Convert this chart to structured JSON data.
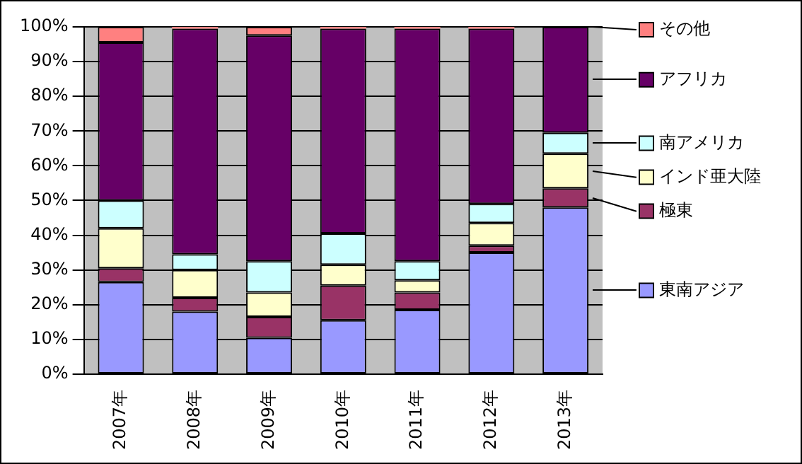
{
  "chart_data": {
    "type": "bar",
    "stacked": true,
    "grid": "y",
    "legend": "right",
    "categories": [
      "2007年",
      "2008年",
      "2009年",
      "2010年",
      "2011年",
      "2012年",
      "2013年"
    ],
    "ylim": [
      0,
      100
    ],
    "yticks": [
      {
        "value": 0,
        "label": "0%"
      },
      {
        "value": 10,
        "label": "10%"
      },
      {
        "value": 20,
        "label": "20%"
      },
      {
        "value": 30,
        "label": "30%"
      },
      {
        "value": 40,
        "label": "40%"
      },
      {
        "value": 50,
        "label": "50%"
      },
      {
        "value": 60,
        "label": "60%"
      },
      {
        "value": 70,
        "label": "70%"
      },
      {
        "value": 80,
        "label": "80%"
      },
      {
        "value": 90,
        "label": "90%"
      },
      {
        "value": 100,
        "label": "100%"
      }
    ],
    "series": [
      {
        "name": "東南アジア",
        "color": "#9999ff",
        "values": [
          26.5,
          18,
          10.5,
          15.5,
          18.5,
          35,
          48
        ]
      },
      {
        "name": "極東",
        "color": "#993366",
        "values": [
          4,
          4,
          6,
          10,
          5,
          2,
          5.5
        ]
      },
      {
        "name": "インド亜大陸",
        "color": "#ffffcc",
        "values": [
          11.5,
          8,
          7,
          6,
          3.5,
          6.5,
          10
        ]
      },
      {
        "name": "南アメリカ",
        "color": "#ccffff",
        "values": [
          8,
          4.5,
          9,
          9,
          5.5,
          5.5,
          6
        ]
      },
      {
        "name": "アフリカ",
        "color": "#660066",
        "values": [
          45.5,
          65,
          65,
          59,
          67,
          50.5,
          30.5
        ]
      },
      {
        "name": "その他",
        "color": "#ff8080",
        "values": [
          4.5,
          0.5,
          2.5,
          0.5,
          0.5,
          0.5,
          0
        ]
      }
    ]
  }
}
